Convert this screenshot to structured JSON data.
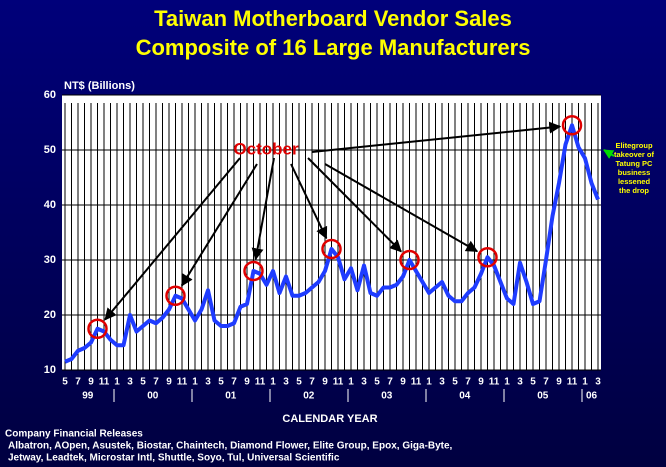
{
  "chart_data": {
    "type": "line",
    "title": "Taiwan Motherboard Vendor Sales",
    "subtitle": "Composite of 16 Large Manufacturers",
    "ylabel": "NT$ (Billions)",
    "xlabel": "CALENDAR YEAR",
    "categories": [
      "5",
      null,
      "7",
      null,
      "9",
      null,
      "11",
      null,
      "1",
      null,
      "3",
      null,
      "5",
      null,
      "7",
      null,
      "9",
      null,
      "11",
      null,
      "1",
      null,
      "3",
      null,
      "5",
      null,
      "7",
      null,
      "9",
      null,
      "11",
      null,
      "1",
      null,
      "3",
      null,
      "5",
      null,
      "7",
      null,
      "9",
      null,
      "11",
      null,
      "1",
      null,
      "3",
      null,
      "5",
      null,
      "7",
      null,
      "9",
      null,
      "11",
      null,
      "1",
      null,
      "3",
      null,
      "5",
      null,
      "7",
      null,
      "9",
      null,
      "11",
      null,
      "1",
      null,
      "3",
      null,
      "5",
      null,
      "7",
      null,
      "9",
      null,
      "11",
      null,
      "1",
      null,
      "3"
    ],
    "years": [
      "99",
      "00",
      "01",
      "02",
      "03",
      "04",
      "05",
      "06"
    ],
    "series": [
      {
        "name": "Sales",
        "color": "#1f3cff",
        "values": [
          11.5,
          12,
          13.5,
          14,
          15,
          17.5,
          17,
          15.5,
          14.5,
          14.5,
          20,
          17,
          18,
          19,
          18.5,
          19.5,
          21,
          23.5,
          23,
          21,
          19,
          21,
          24.5,
          19,
          18,
          18,
          18.5,
          21.5,
          22,
          28,
          27.5,
          25.5,
          28,
          24,
          27,
          23.5,
          23.5,
          24,
          25,
          26,
          28,
          32,
          30.5,
          26.5,
          28.5,
          24.5,
          29,
          24,
          23.5,
          25,
          25,
          25.5,
          27,
          30,
          28,
          26,
          24,
          25,
          26,
          23.5,
          22.5,
          22.5,
          24,
          25,
          27.5,
          30.5,
          29,
          26,
          23,
          22,
          29.5,
          26,
          22,
          22.5,
          30,
          38,
          44,
          51,
          54.5,
          50.5,
          48.5,
          44,
          41
        ]
      }
    ],
    "ylim": [
      10,
      60
    ],
    "yticks": [
      10,
      20,
      30,
      40,
      50,
      60
    ],
    "grid": true,
    "circled": [
      5,
      17,
      29,
      41,
      53,
      65,
      78
    ],
    "callout": "October",
    "note": [
      "Elitegroup",
      "takeover of",
      "Tatung PC",
      "business",
      "lessened",
      "the drop"
    ],
    "source": "Company Financial Releases",
    "vendors": [
      "Albatron, AOpen, Asustek, Biostar, Chaintech, Diamond Flower, Elite Group, Epox, Giga-Byte,",
      "Jetway, Leadtek, Microstar Intl, Shuttle, Soyo, Tul, Universal Scientific"
    ]
  }
}
